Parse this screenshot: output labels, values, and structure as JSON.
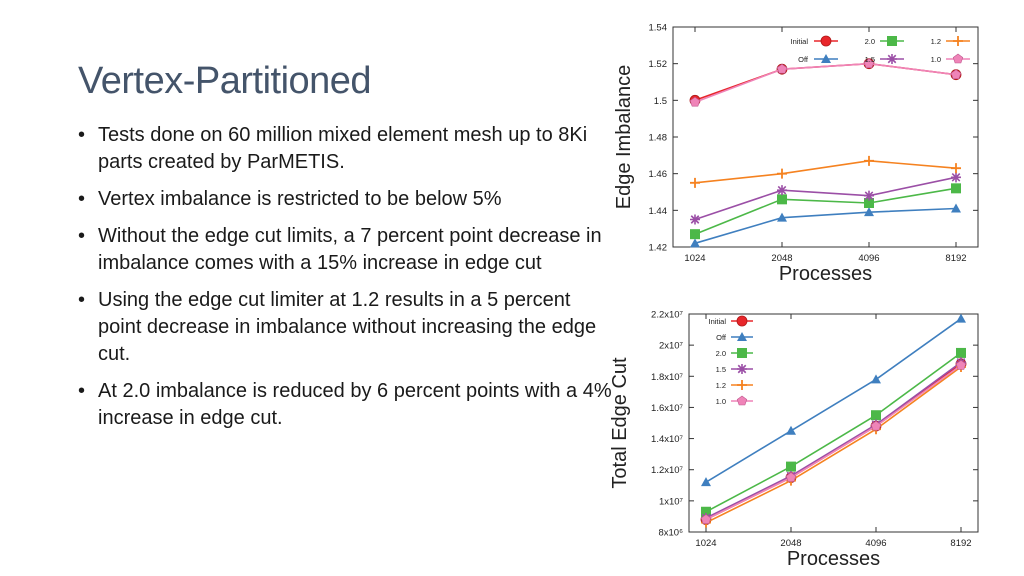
{
  "slide": {
    "title": "Vertex-Partitioned",
    "bullets": [
      "Tests done on 60 million mixed element mesh up to 8Ki parts created by ParMETIS.",
      "Vertex imbalance is restricted to be below 5%",
      "Without the edge cut limits, a 7 percent point decrease in imbalance comes with a 15% increase in edge cut",
      "Using the edge cut limiter at 1.2 results in a 5 percent point decrease in imbalance without increasing the edge cut.",
      "At 2.0 imbalance is reduced by 6 percent points with a 4% increase in edge cut."
    ]
  },
  "colors": {
    "Initial": "#e8262b",
    "Off": "#3f7fbf",
    "2.0": "#4cb848",
    "1.5": "#9b4fa6",
    "1.2": "#f58220",
    "1.0": "#ef84b8"
  },
  "chart_data": [
    {
      "type": "line",
      "title": "",
      "xlabel": "Processes",
      "ylabel": "Edge Imbalance",
      "categories": [
        "1024",
        "2048",
        "4096",
        "8192"
      ],
      "ylim": [
        1.42,
        1.54
      ],
      "yticks": [
        "1.42",
        "1.44",
        "1.46",
        "1.48",
        "1.5",
        "1.52",
        "1.54"
      ],
      "legend_position": "top",
      "series": [
        {
          "name": "Initial",
          "marker": "circle",
          "values": [
            1.5,
            1.517,
            1.52,
            1.514
          ]
        },
        {
          "name": "Off",
          "marker": "triangle",
          "values": [
            1.422,
            1.436,
            1.439,
            1.441
          ]
        },
        {
          "name": "2.0",
          "marker": "square",
          "values": [
            1.427,
            1.446,
            1.444,
            1.452
          ]
        },
        {
          "name": "1.5",
          "marker": "star",
          "values": [
            1.435,
            1.451,
            1.448,
            1.458
          ]
        },
        {
          "name": "1.2",
          "marker": "plus",
          "values": [
            1.455,
            1.46,
            1.467,
            1.463
          ]
        },
        {
          "name": "1.0",
          "marker": "pentagon",
          "values": [
            1.499,
            1.517,
            1.52,
            1.514
          ]
        }
      ]
    },
    {
      "type": "line",
      "title": "",
      "xlabel": "Processes",
      "ylabel": "Total Edge Cut",
      "categories": [
        "1024",
        "2048",
        "4096",
        "8192"
      ],
      "ylim": [
        8000000,
        22000000
      ],
      "yticks": [
        "8x10⁶",
        "1x10⁷",
        "1.2x10⁷",
        "1.4x10⁷",
        "1.6x10⁷",
        "1.8x10⁷",
        "2x10⁷",
        "2.2x10⁷"
      ],
      "legend_position": "top-left",
      "series": [
        {
          "name": "Initial",
          "marker": "circle",
          "values": [
            8800000,
            11500000,
            14800000,
            18800000
          ]
        },
        {
          "name": "Off",
          "marker": "triangle",
          "values": [
            11200000,
            14500000,
            17800000,
            21700000
          ]
        },
        {
          "name": "2.0",
          "marker": "square",
          "values": [
            9300000,
            12200000,
            15500000,
            19500000
          ]
        },
        {
          "name": "1.5",
          "marker": "star",
          "values": [
            8900000,
            11600000,
            14900000,
            18900000
          ]
        },
        {
          "name": "1.2",
          "marker": "plus",
          "values": [
            8600000,
            11300000,
            14600000,
            18600000
          ]
        },
        {
          "name": "1.0",
          "marker": "pentagon",
          "values": [
            8800000,
            11500000,
            14800000,
            18700000
          ]
        }
      ]
    }
  ]
}
